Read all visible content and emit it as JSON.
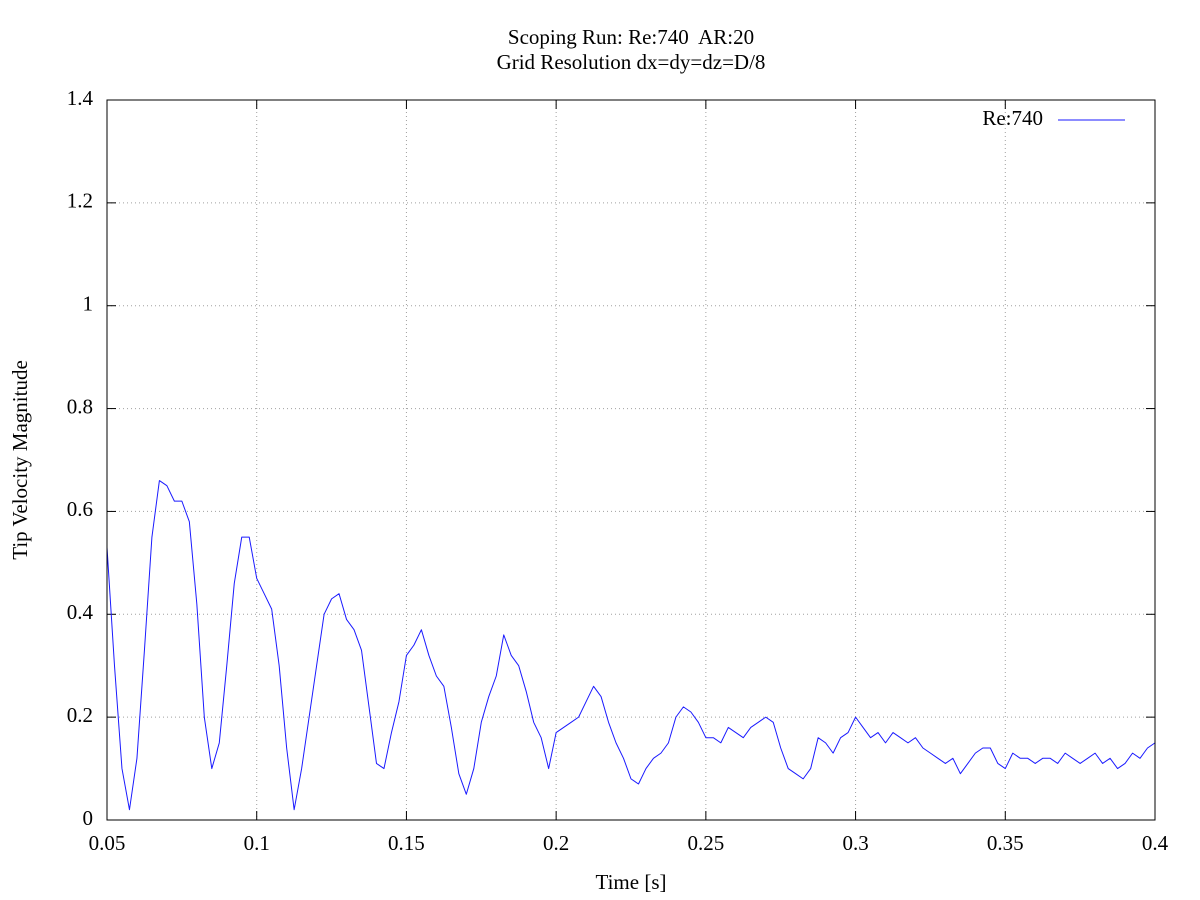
{
  "chart_data": {
    "type": "line",
    "title": "Scoping Run: Re:740  AR:20",
    "subtitle": "Grid Resolution dx=dy=dz=D/8",
    "x_label": "Time [s]",
    "y_label": "Tip Velocity Magnitude",
    "xlim": [
      0.05,
      0.4
    ],
    "ylim": [
      0,
      1.4
    ],
    "xticks": [
      0.05,
      0.1,
      0.15,
      0.2,
      0.25,
      0.3,
      0.35,
      0.4
    ],
    "yticks": [
      0,
      0.2,
      0.4,
      0.6,
      0.8,
      1,
      1.2,
      1.4
    ],
    "grid": true,
    "legend": "top-right",
    "x": [
      0.05,
      0.0525,
      0.055,
      0.0575,
      0.06,
      0.0625,
      0.065,
      0.0675,
      0.07,
      0.0725,
      0.075,
      0.0775,
      0.08,
      0.0825,
      0.085,
      0.0875,
      0.09,
      0.0925,
      0.095,
      0.0975,
      0.1,
      0.1025,
      0.105,
      0.1075,
      0.11,
      0.1125,
      0.115,
      0.1175,
      0.12,
      0.1225,
      0.125,
      0.1275,
      0.13,
      0.1325,
      0.135,
      0.1375,
      0.14,
      0.1425,
      0.145,
      0.1475,
      0.15,
      0.1525,
      0.155,
      0.1575,
      0.16,
      0.1625,
      0.165,
      0.1675,
      0.17,
      0.1725,
      0.175,
      0.1775,
      0.18,
      0.1825,
      0.185,
      0.1875,
      0.19,
      0.1925,
      0.195,
      0.1975,
      0.2,
      0.2025,
      0.205,
      0.2075,
      0.21,
      0.2125,
      0.215,
      0.2175,
      0.22,
      0.2225,
      0.225,
      0.2275,
      0.23,
      0.2325,
      0.235,
      0.2375,
      0.24,
      0.2425,
      0.245,
      0.2475,
      0.25,
      0.2525,
      0.255,
      0.2575,
      0.26,
      0.2625,
      0.265,
      0.2675,
      0.27,
      0.2725,
      0.275,
      0.2775,
      0.28,
      0.2825,
      0.285,
      0.2875,
      0.29,
      0.2925,
      0.295,
      0.2975,
      0.3,
      0.3025,
      0.305,
      0.3075,
      0.31,
      0.3125,
      0.315,
      0.3175,
      0.32,
      0.3225,
      0.325,
      0.3275,
      0.33,
      0.3325,
      0.335,
      0.3375,
      0.34,
      0.3425,
      0.345,
      0.3475,
      0.35,
      0.3525,
      0.355,
      0.3575,
      0.36,
      0.3625,
      0.365,
      0.3675,
      0.37,
      0.3725,
      0.375,
      0.3775,
      0.38,
      0.3825,
      0.385,
      0.3875,
      0.39,
      0.3925,
      0.395,
      0.3975,
      0.4
    ],
    "series": [
      {
        "name": "Re:740",
        "color": "#1a1aff",
        "values": [
          0.53,
          0.3,
          0.1,
          0.02,
          0.12,
          0.33,
          0.55,
          0.66,
          0.65,
          0.62,
          0.62,
          0.58,
          0.42,
          0.2,
          0.1,
          0.15,
          0.3,
          0.46,
          0.55,
          0.55,
          0.47,
          0.44,
          0.41,
          0.3,
          0.14,
          0.02,
          0.1,
          0.2,
          0.3,
          0.4,
          0.43,
          0.44,
          0.39,
          0.37,
          0.33,
          0.22,
          0.11,
          0.1,
          0.17,
          0.23,
          0.32,
          0.34,
          0.37,
          0.32,
          0.28,
          0.26,
          0.18,
          0.09,
          0.05,
          0.1,
          0.19,
          0.24,
          0.28,
          0.36,
          0.32,
          0.3,
          0.25,
          0.19,
          0.16,
          0.1,
          0.17,
          0.18,
          0.19,
          0.2,
          0.23,
          0.26,
          0.24,
          0.19,
          0.15,
          0.12,
          0.08,
          0.07,
          0.1,
          0.12,
          0.13,
          0.15,
          0.2,
          0.22,
          0.21,
          0.19,
          0.16,
          0.16,
          0.15,
          0.18,
          0.17,
          0.16,
          0.18,
          0.19,
          0.2,
          0.19,
          0.14,
          0.1,
          0.09,
          0.08,
          0.1,
          0.16,
          0.15,
          0.13,
          0.16,
          0.17,
          0.2,
          0.18,
          0.16,
          0.17,
          0.15,
          0.17,
          0.16,
          0.15,
          0.16,
          0.14,
          0.13,
          0.12,
          0.11,
          0.12,
          0.09,
          0.11,
          0.13,
          0.14,
          0.14,
          0.11,
          0.1,
          0.13,
          0.12,
          0.12,
          0.11,
          0.12,
          0.12,
          0.11,
          0.13,
          0.12,
          0.11,
          0.12,
          0.13,
          0.11,
          0.12,
          0.1,
          0.11,
          0.13,
          0.12,
          0.14,
          0.15
        ]
      }
    ]
  }
}
